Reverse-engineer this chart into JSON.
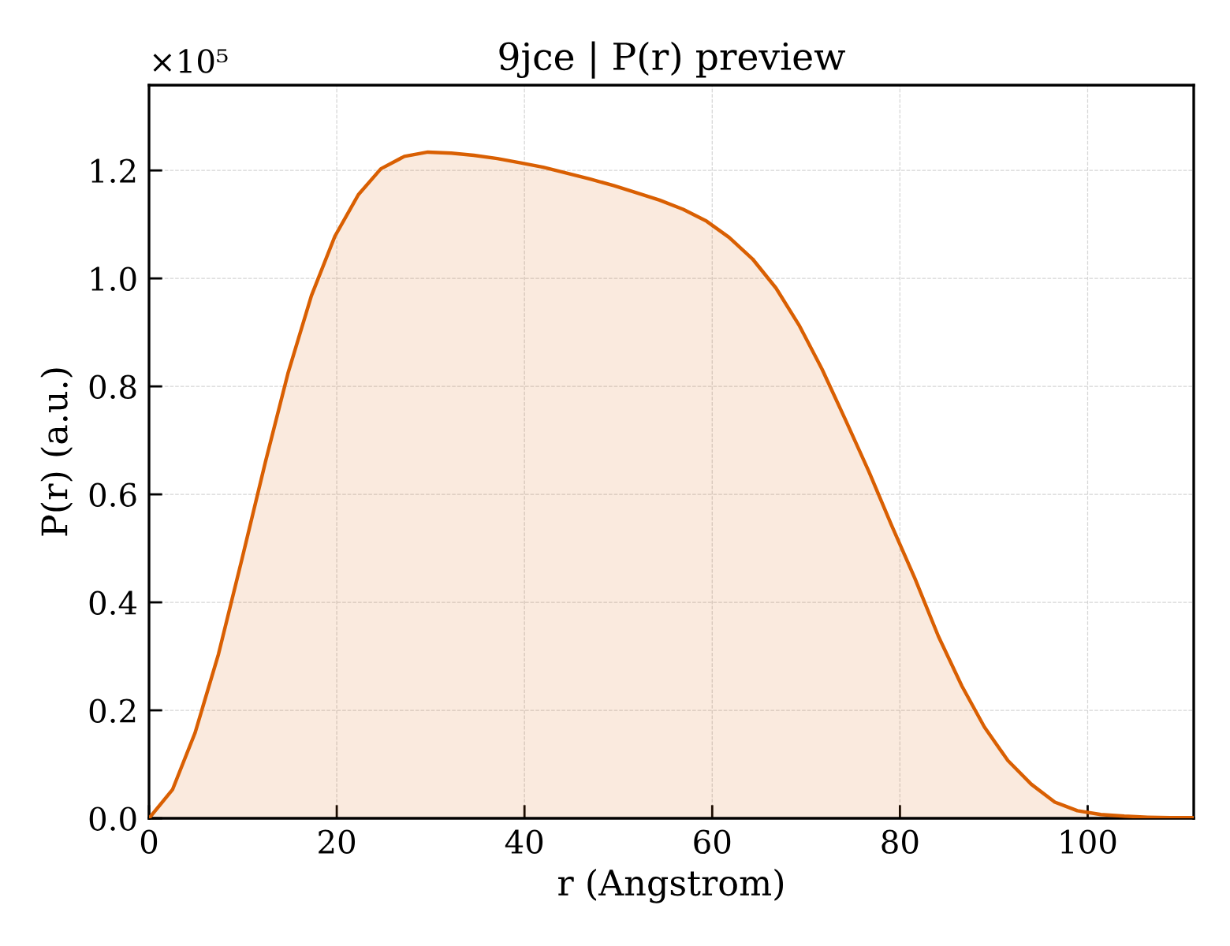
{
  "chart_data": {
    "type": "area",
    "title": "9jce | P(r) preview",
    "xlabel": "r (Angstrom)",
    "ylabel": "P(r) (a.u.)",
    "x": [
      0,
      2.5,
      4.9,
      7.4,
      9.9,
      12.4,
      14.8,
      17.3,
      19.8,
      22.3,
      24.7,
      27.2,
      29.7,
      32.2,
      34.6,
      37.1,
      39.6,
      42.0,
      44.5,
      47.0,
      49.5,
      51.9,
      54.4,
      56.9,
      59.4,
      61.8,
      64.3,
      66.8,
      69.3,
      71.7,
      74.2,
      76.7,
      79.1,
      81.6,
      84.1,
      86.6,
      89.0,
      91.5,
      94.0,
      96.5,
      98.9,
      101.4,
      103.9,
      106.4,
      108.8,
      111.3
    ],
    "series": [
      {
        "color": "#d95f02",
        "values": [
          0,
          0.053,
          0.158,
          0.304,
          0.48,
          0.66,
          0.824,
          0.968,
          1.078,
          1.155,
          1.203,
          1.226,
          1.234,
          1.232,
          1.228,
          1.222,
          1.214,
          1.206,
          1.195,
          1.184,
          1.172,
          1.159,
          1.145,
          1.128,
          1.106,
          1.076,
          1.036,
          0.982,
          0.912,
          0.832,
          0.738,
          0.642,
          0.543,
          0.444,
          0.337,
          0.245,
          0.169,
          0.107,
          0.063,
          0.03,
          0.014,
          0.007,
          0.004,
          0.002,
          0.001,
          0.001
        ]
      }
    ],
    "xlim": [
      0,
      111.3
    ],
    "ylim": [
      0,
      1.358
    ],
    "xticks": [
      0,
      20,
      40,
      60,
      80,
      100
    ],
    "yticks": [
      {
        "value": 0,
        "label": "0.0"
      },
      0.2,
      0.4,
      0.6,
      0.8,
      {
        "value": 1,
        "label": "1.0"
      },
      1.2
    ],
    "grid": true,
    "annotations": [
      "×10⁵"
    ]
  }
}
